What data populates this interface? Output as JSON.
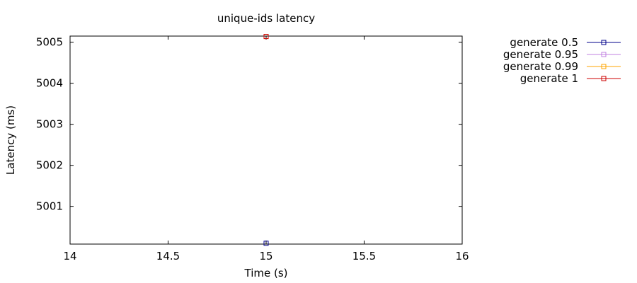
{
  "chart_data": {
    "type": "line",
    "title": "unique-ids latency",
    "xlabel": "Time (s)",
    "ylabel": "Latency (ms)",
    "xlim": [
      14,
      16
    ],
    "ylim": [
      5000.08,
      5005.15
    ],
    "x_ticks": [
      14,
      14.5,
      15,
      15.5,
      16
    ],
    "x_tick_labels": [
      "14",
      "14.5",
      "15",
      "15.5",
      "16"
    ],
    "y_ticks": [
      5001,
      5002,
      5003,
      5004,
      5005
    ],
    "y_tick_labels": [
      "5001",
      "5002",
      "5003",
      "5004",
      "5005"
    ],
    "grid": false,
    "legend_position": "outside-right-top",
    "series": [
      {
        "name": "generate 0.5",
        "color": "#00008b",
        "points": [
          [
            15,
            5000.1
          ]
        ]
      },
      {
        "name": "generate 0.95",
        "color": "#c080e0",
        "points": [
          [
            15,
            5005.14
          ]
        ]
      },
      {
        "name": "generate 0.99",
        "color": "#ffa500",
        "points": [
          [
            15,
            5005.14
          ]
        ]
      },
      {
        "name": "generate 1",
        "color": "#cc0000",
        "points": [
          [
            15,
            5005.14
          ]
        ]
      }
    ]
  }
}
